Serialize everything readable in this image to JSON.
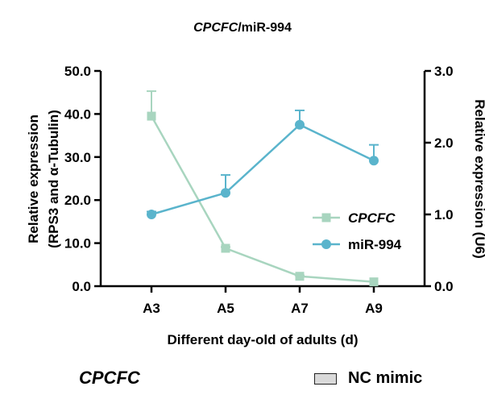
{
  "chart_data": {
    "type": "line",
    "title_italic": "CPCFC",
    "title_rest": "/miR-994",
    "xlabel": "Different day-old of adults (d)",
    "ylabel_left": [
      "Relative expression",
      "(RPS3 and α-Tubulin)"
    ],
    "ylabel_right": "Relative expression (U6)",
    "categories": [
      "A3",
      "A5",
      "A7",
      "A9"
    ],
    "ylim_left": [
      0,
      50
    ],
    "yticks_left": [
      "0.0",
      "10.0",
      "20.0",
      "30.0",
      "40.0",
      "50.0"
    ],
    "ylim_right": [
      0,
      3
    ],
    "yticks_right": [
      "0.0",
      "1.0",
      "2.0",
      "3.0"
    ],
    "series": [
      {
        "name": "CPCFC",
        "axis": "left",
        "color": "#a8d5bf",
        "marker": "square",
        "italic": true,
        "values": [
          39.5,
          8.8,
          2.3,
          1.0
        ],
        "errors": [
          5.8,
          0.3,
          0.2,
          0.1
        ]
      },
      {
        "name": "miR-994",
        "axis": "right",
        "color": "#5ab4cc",
        "marker": "circle",
        "italic": false,
        "values": [
          1.0,
          1.3,
          2.25,
          1.75
        ],
        "errors": [
          0.04,
          0.25,
          0.2,
          0.22
        ]
      }
    ],
    "legend_position": "center-right"
  },
  "footer": {
    "gene_label": "CPCFC",
    "legend_label": "NC mimic",
    "legend_color": "#d9d9d9"
  }
}
